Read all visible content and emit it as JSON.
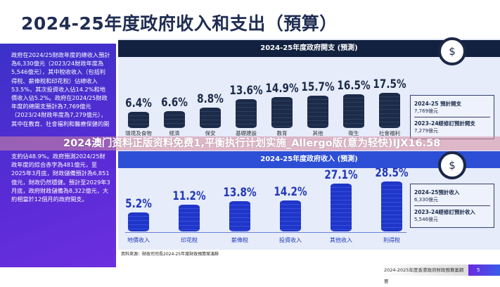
{
  "title": "2024-25年度政府收入和支出（預算）",
  "summary_text": "政府在2024/25財政年度的總收入預計為6,330億元（2023/24財政年度為5,546億元），其中稅收收入（包括利得稅、薪俸稅和印花稅）佔總收入53.5%，其次投資收入佔14.2%和地價收入佔5.2%。政府在2024/25財政年度的總開支預計為7,769億元（2023/24財政年度為7,279億元），其中在教育、社會福利和醫療保健的開支約佔48.9%。政府預測2024/25財政年度的綜合赤字為481億元，至2025年3月底，財政儲備預計為6,851億元，財政仍然穩健。預計至2029年3月底，政府財政儲備為8,322億元，大約相當於12個月的政府開支。",
  "banner": "2024澳门资料正版资料免费1,平衡执行计划实施_Allergo版(意为轻快)IJX16.58",
  "chart_data": [
    {
      "type": "bar",
      "title": "2024-25年度政府開支 (預測)",
      "unit": "%",
      "categories": [
        "環境及食物",
        "經濟",
        "保安",
        "基礎建設",
        "教育",
        "其他",
        "衛生",
        "社會福利"
      ],
      "values": [
        6.4,
        6.6,
        8.8,
        13.6,
        14.9,
        15.7,
        16.5,
        17.5
      ],
      "labels": [
        "6.4%",
        "6.6%",
        "8.8%",
        "13.6%",
        "14.9%",
        "15.7%",
        "16.5%",
        "17.5%"
      ],
      "color": "#1c2b48",
      "legend": [
        {
          "label": "2024-25 預計開支",
          "value": "7,769億元"
        },
        {
          "label": "2023-24經修訂預計開支",
          "value": "7,279億元"
        }
      ]
    },
    {
      "type": "bar",
      "title": "2024-25年度政府收入 (預測)",
      "unit": "%",
      "categories": [
        "地價收入",
        "印花稅",
        "薪俸稅",
        "投資收入",
        "其他收入",
        "利得稅"
      ],
      "values": [
        5.2,
        11.2,
        13.8,
        14.2,
        27.1,
        28.5
      ],
      "labels": [
        "5.2%",
        "11.2%",
        "13.8%",
        "14.2%",
        "27.1%",
        "28.5%"
      ],
      "color": "#2238b8",
      "legend": [
        {
          "label": "2024-25預計收入",
          "value": "6,330億元"
        },
        {
          "label": "2023-24經修訂預計收入",
          "value": "5,546億元"
        }
      ]
    }
  ],
  "source": "資料來源：財政司司長2024-25年度財政預算案演辭",
  "footer": {
    "title": "2024-2025年度香港政府財政預算案綱要",
    "page": "5"
  },
  "icons": {
    "expenditure": "money-bag-wings-icon",
    "revenue": "piggy-bank-icon"
  }
}
